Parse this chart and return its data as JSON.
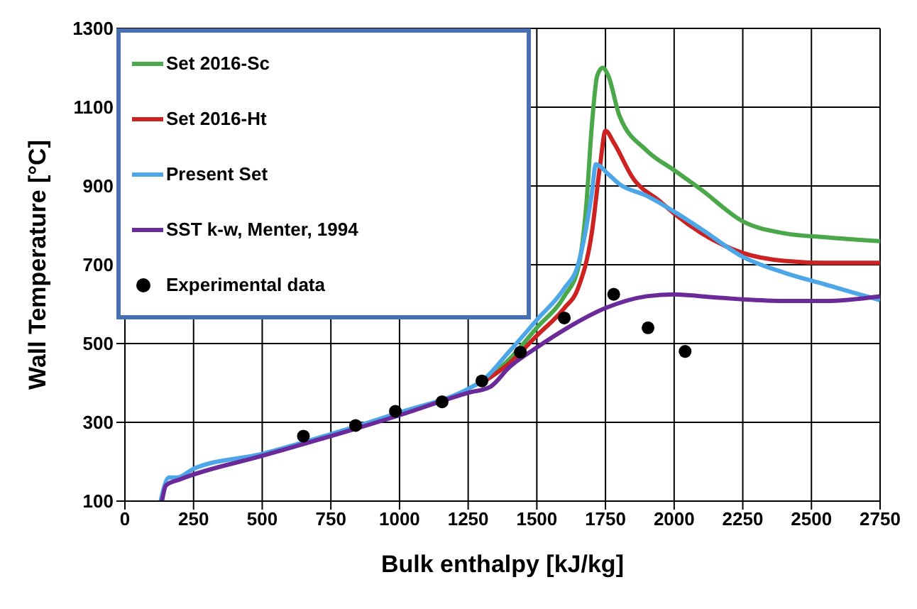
{
  "chart_data": {
    "type": "line",
    "xlabel": "Bulk enthalpy [kJ/kg]",
    "ylabel": "Wall Temperature [°C]",
    "xlim": [
      0,
      2750
    ],
    "xticks": [
      0,
      250,
      500,
      750,
      1000,
      1250,
      1500,
      1750,
      2000,
      2250,
      2500,
      2750
    ],
    "ylim": [
      100,
      1300
    ],
    "yticks": [
      100,
      300,
      500,
      700,
      900,
      1100,
      1300
    ],
    "grid": true,
    "legend": "top left",
    "line_style": "solid",
    "marker": "none",
    "series": [
      {
        "name": "Set 2016-Sc",
        "color": "#4aa84a",
        "x": [
          1300,
          1400,
          1500,
          1600,
          1650,
          1680,
          1700,
          1720,
          1740,
          1760,
          1800,
          1900,
          2000,
          2100,
          2250,
          2400,
          2550,
          2750
        ],
        "values": [
          400,
          460,
          540,
          620,
          690,
          850,
          1050,
          1180,
          1200,
          1180,
          1080,
          990,
          940,
          890,
          810,
          780,
          770,
          760
        ]
      },
      {
        "name": "Set 2016-Ht",
        "color": "#cc2222",
        "x": [
          1300,
          1400,
          1500,
          1600,
          1650,
          1700,
          1730,
          1750,
          1780,
          1850,
          1950,
          2000,
          2100,
          2250,
          2400,
          2550,
          2750
        ],
        "values": [
          400,
          450,
          520,
          590,
          640,
          780,
          950,
          1040,
          1010,
          920,
          860,
          830,
          780,
          730,
          710,
          705,
          705
        ]
      },
      {
        "name": "Present Set",
        "color": "#4da6e8",
        "x": [
          130,
          160,
          190,
          250,
          500,
          750,
          1000,
          1250,
          1300,
          1400,
          1500,
          1600,
          1650,
          1700,
          1715,
          1760,
          1800,
          1900,
          2000,
          2100,
          2250,
          2400,
          2550,
          2750
        ],
        "values": [
          100,
          160,
          160,
          182,
          220,
          270,
          325,
          385,
          405,
          480,
          560,
          640,
          700,
          880,
          955,
          930,
          905,
          875,
          835,
          790,
          720,
          680,
          650,
          610
        ]
      },
      {
        "name": "SST k-w, Menter, 1994",
        "color": "#6a2a9a",
        "x": [
          135,
          150,
          200,
          500,
          750,
          1000,
          1250,
          1330,
          1400,
          1500,
          1600,
          1750,
          1900,
          2000,
          2100,
          2250,
          2400,
          2550,
          2750
        ],
        "values": [
          100,
          140,
          155,
          215,
          265,
          318,
          375,
          390,
          440,
          490,
          535,
          590,
          620,
          625,
          620,
          612,
          608,
          608,
          620
        ]
      },
      {
        "name": "Experimental data",
        "type": "scatter",
        "marker": "circle",
        "color": "#000000",
        "x": [
          650,
          840,
          985,
          1155,
          1300,
          1440,
          1600,
          1780,
          1905,
          2040
        ],
        "values": [
          265,
          292,
          328,
          352,
          405,
          478,
          565,
          625,
          540,
          480
        ]
      }
    ]
  }
}
